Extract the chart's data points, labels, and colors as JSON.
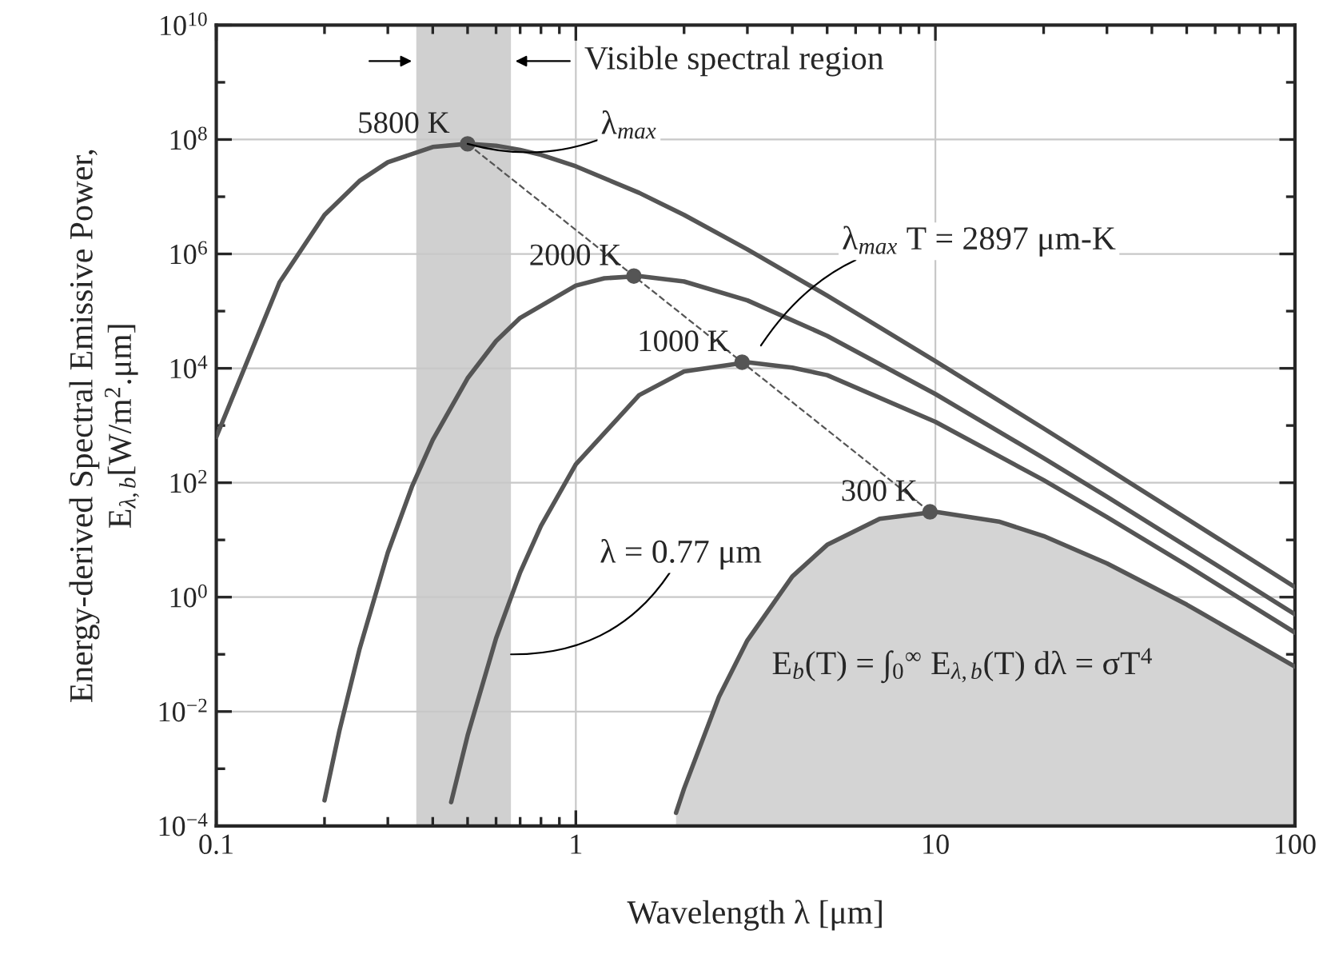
{
  "chart_data": {
    "type": "line",
    "xlabel": "Wavelength λ [μm]",
    "ylabel": "Energy-derived Spectral Emissive Power,\nE$_{λ,b}$[W/m$^{2}$.μm]",
    "log": "xy",
    "grid": true,
    "xlim": [
      0.1,
      100
    ],
    "xticks": [
      0.1,
      1,
      10,
      100
    ],
    "ylim": [
      0.0001,
      10000000000
    ],
    "yticks": [
      {
        "value": 0.0001,
        "label": "10$^{−4}$"
      },
      {
        "value": 0.01,
        "label": "10$^{−2}$"
      },
      {
        "value": 1,
        "label": "10$^{0}$"
      },
      {
        "value": 100,
        "label": "10$^{2}$"
      },
      {
        "value": 10000,
        "label": "10$^{4}$"
      },
      {
        "value": 1000000,
        "label": "10$^{6}$"
      },
      {
        "value": 100000000,
        "label": "10$^{8}$"
      },
      {
        "value": 10000000000,
        "label": "10$^{10}$"
      }
    ],
    "series": [
      {
        "name": "5800 K",
        "color": "#555555",
        "x": [
          0.1,
          0.15,
          0.2,
          0.25,
          0.3,
          0.4,
          0.5,
          0.6,
          0.7,
          0.8,
          1,
          1.5,
          2,
          3,
          5,
          7,
          10,
          20,
          30,
          50,
          100
        ],
        "values": [
          630,
          320000,
          4800000,
          18800000,
          40000000,
          74000000,
          84000000,
          78000000,
          66000000,
          54000000,
          34000000,
          11700000,
          4800000,
          1200000,
          187000,
          52000,
          13300,
          890,
          179,
          23.5,
          1.5
        ]
      },
      {
        "name": "2000 K",
        "color": "#555555",
        "x": [
          0.2,
          0.22,
          0.25,
          0.3,
          0.35,
          0.4,
          0.5,
          0.6,
          0.7,
          1,
          1.2,
          1.5,
          2,
          3,
          5,
          10,
          20,
          30,
          50,
          100
        ],
        "values": [
          0.00028,
          0.0046,
          0.12,
          6.0,
          85,
          560,
          6700,
          30000,
          76000,
          280000,
          375000,
          410000,
          330000,
          154000,
          37000,
          3550,
          270,
          57,
          7.7,
          0.5
        ]
      },
      {
        "name": "1000 K",
        "color": "#555555",
        "x": [
          0.45,
          0.5,
          0.6,
          0.7,
          0.8,
          1,
          1.5,
          2,
          3,
          4,
          5,
          10,
          20,
          30,
          50,
          100
        ],
        "values": [
          0.00026,
          0.0038,
          0.19,
          2.7,
          17.6,
          210,
          3400,
          8800,
          12800,
          10300,
          7600,
          1160,
          111,
          25,
          3.6,
          0.24
        ]
      },
      {
        "name": "300 K",
        "type": "area",
        "color": "#555555",
        "x": [
          1.9,
          2,
          2.5,
          3,
          4,
          5,
          7,
          10,
          15,
          20,
          30,
          50,
          100
        ],
        "values": [
          0.00017,
          0.00045,
          0.018,
          0.175,
          2.3,
          8.2,
          23.5,
          31,
          21,
          11.7,
          3.9,
          0.74,
          0.061
        ]
      },
      {
        "type": "line",
        "color": "#555555",
        "marker": "circle",
        "line_style": "dashed",
        "x": [
          0.5,
          1.45,
          2.9,
          9.66
        ],
        "values": [
          84000000,
          410000,
          12800,
          31
        ]
      }
    ],
    "bands": [
      {
        "axis": "x",
        "from": 0.36,
        "to": 0.66,
        "label": "Visible spectral region",
        "color": "#d0d0d0"
      }
    ],
    "annotations": [
      {
        "text": "λ$_{max}$",
        "x": 0.5,
        "y": 84000000
      },
      "λ$_{max}$ T = 2897 μm-K",
      {
        "text": "λ = 0.77 μm",
        "x": 0.66,
        "y": 0.1
      },
      "E$_{b}$(T) = ∫$_{0}$$^{∞}$ E$_{λ,b}$(T) dλ = σT$^{4}$"
    ]
  }
}
